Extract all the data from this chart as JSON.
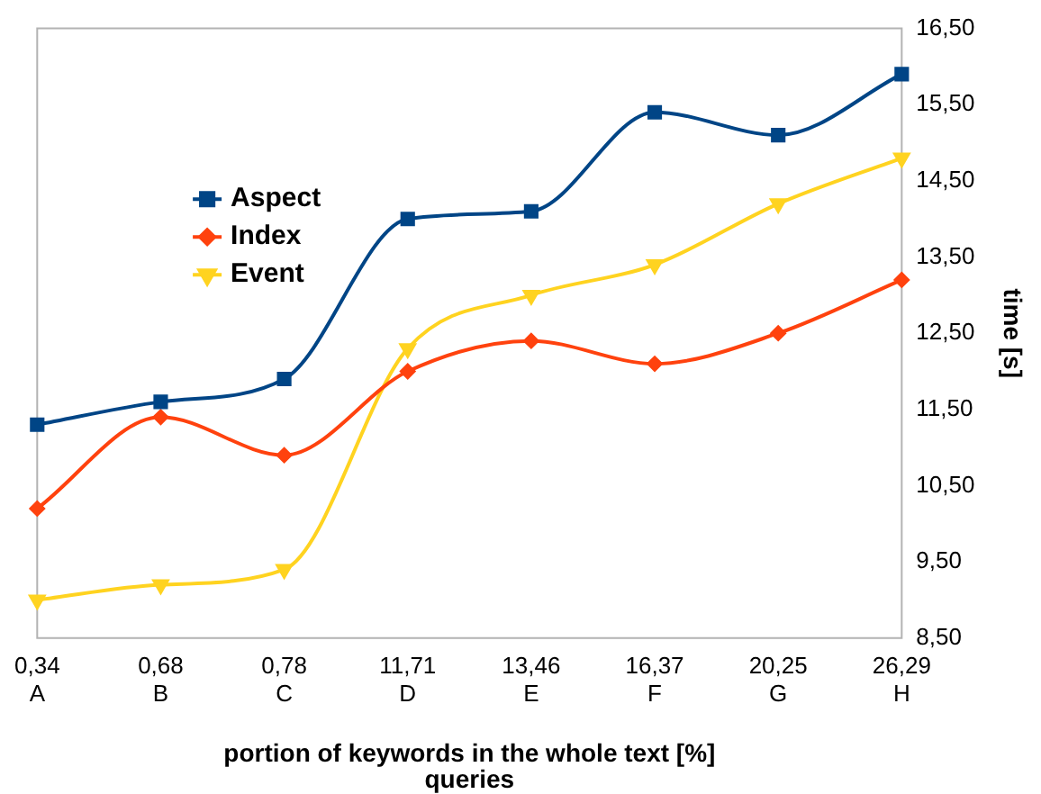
{
  "chart_data": {
    "type": "line",
    "xlabel": "portion of keywords in the whole text [%]\nqueries",
    "ylabel": "time [s]",
    "categories": [
      "0,34\nA",
      "0,68\nB",
      "0,78\nC",
      "11,71\nD",
      "13,46\nE",
      "16,37\nF",
      "20,25\nG",
      "26,29\nH"
    ],
    "series": [
      {
        "name": "Aspect",
        "color": "#004586",
        "marker": "square",
        "values": [
          11.3,
          11.6,
          11.9,
          14.0,
          14.1,
          15.4,
          15.1,
          15.9
        ]
      },
      {
        "name": "Index",
        "color": "#ff420e",
        "marker": "diamond",
        "values": [
          10.2,
          11.4,
          10.9,
          12.0,
          12.4,
          12.1,
          12.5,
          13.2
        ]
      },
      {
        "name": "Event",
        "color": "#ffd320",
        "marker": "triangle",
        "values": [
          9.0,
          9.2,
          9.4,
          12.3,
          13.0,
          13.4,
          14.2,
          14.8
        ]
      }
    ],
    "ylim": [
      8.5,
      16.5
    ],
    "yticks": [
      {
        "value": 8.5,
        "label": "8,50"
      },
      {
        "value": 9.5,
        "label": "9,50"
      },
      {
        "value": 10.5,
        "label": "10,50"
      },
      {
        "value": 11.5,
        "label": "11,50"
      },
      {
        "value": 12.5,
        "label": "12,50"
      },
      {
        "value": 13.5,
        "label": "13,50"
      },
      {
        "value": 14.5,
        "label": "14,50"
      },
      {
        "value": 15.5,
        "label": "15,50"
      },
      {
        "value": 16.5,
        "label": "16,50"
      }
    ],
    "grid": false,
    "legend": "left"
  }
}
